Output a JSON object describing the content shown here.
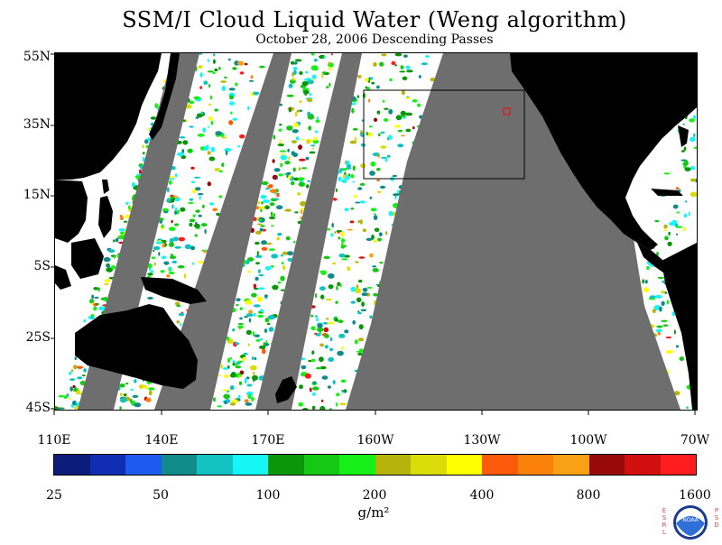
{
  "title": "SSM/I Cloud Liquid Water (Weng algorithm)",
  "subtitle": "October 28, 2006  Descending Passes",
  "latitude_labels": [
    "55N",
    "35N",
    "15N",
    "5S",
    "25S",
    "45S"
  ],
  "longitude_labels": [
    "110E",
    "140E",
    "170E",
    "160W",
    "130W",
    "100W",
    "70W"
  ],
  "colorbar": {
    "colors": [
      "#0b1c7a",
      "#0f2eb4",
      "#1e5af0",
      "#118a8a",
      "#12c2c2",
      "#16f6f6",
      "#099609",
      "#14c814",
      "#16f016",
      "#b4b40a",
      "#dcdc0a",
      "#ffff00",
      "#fa5a0a",
      "#fa820a",
      "#faa014",
      "#960a0a",
      "#d20f0f",
      "#ff1e1e"
    ],
    "labels": [
      "25",
      "50",
      "100",
      "200",
      "400",
      "800",
      "1600"
    ],
    "units": "g/m²"
  },
  "logo": {
    "left_text": "ESRL",
    "right_text": "PSD",
    "center_text": "NOAA"
  },
  "map_colors": {
    "land": "#000000",
    "no_data": "#6e6e6e",
    "clear_ocean": "#ffffff",
    "box_outline": "#000000",
    "marker": "#ff0000"
  }
}
